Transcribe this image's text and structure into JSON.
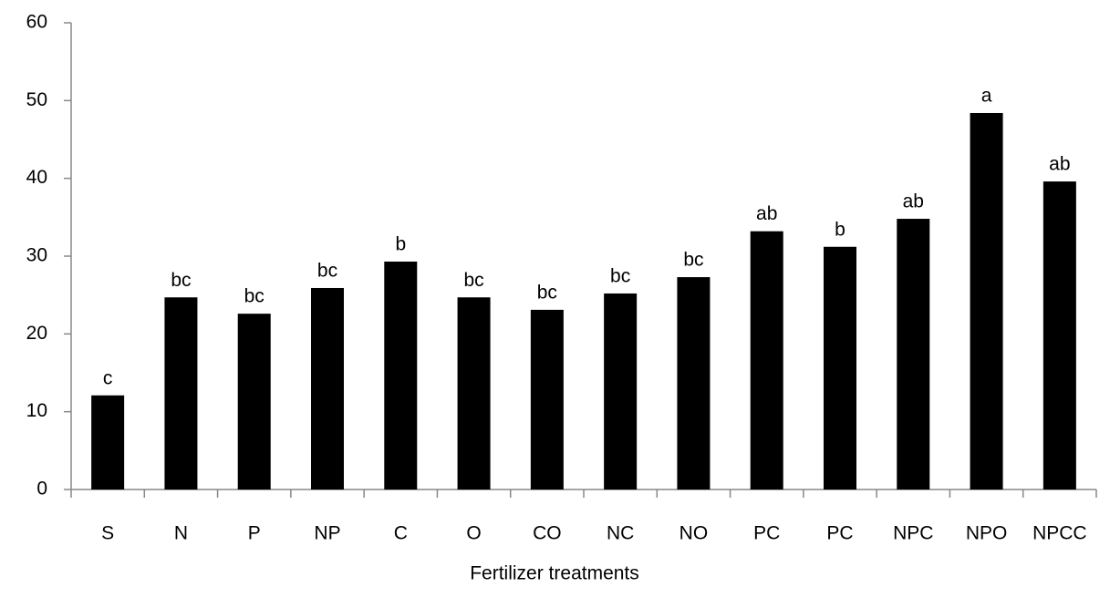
{
  "chart_data": {
    "type": "bar",
    "x_label": "Fertilizer treatments",
    "categories": [
      "S",
      "N",
      "P",
      "NP",
      "C",
      "O",
      "CO",
      "NC",
      "NO",
      "PC",
      "PC",
      "NPC",
      "NPO",
      "NPCC"
    ],
    "values": [
      12.1,
      24.7,
      22.6,
      25.9,
      29.3,
      24.7,
      23.1,
      25.2,
      27.3,
      33.2,
      31.2,
      34.8,
      48.4,
      39.6
    ],
    "annotations": [
      "c",
      "bc",
      "bc",
      "bc",
      "b",
      "bc",
      "bc",
      "bc",
      "bc",
      "ab",
      "b",
      "ab",
      "a",
      "ab"
    ],
    "color": "#000000",
    "ylim": [
      0,
      60
    ],
    "yticks": [
      0,
      10,
      20,
      30,
      40,
      50,
      60
    ]
  }
}
